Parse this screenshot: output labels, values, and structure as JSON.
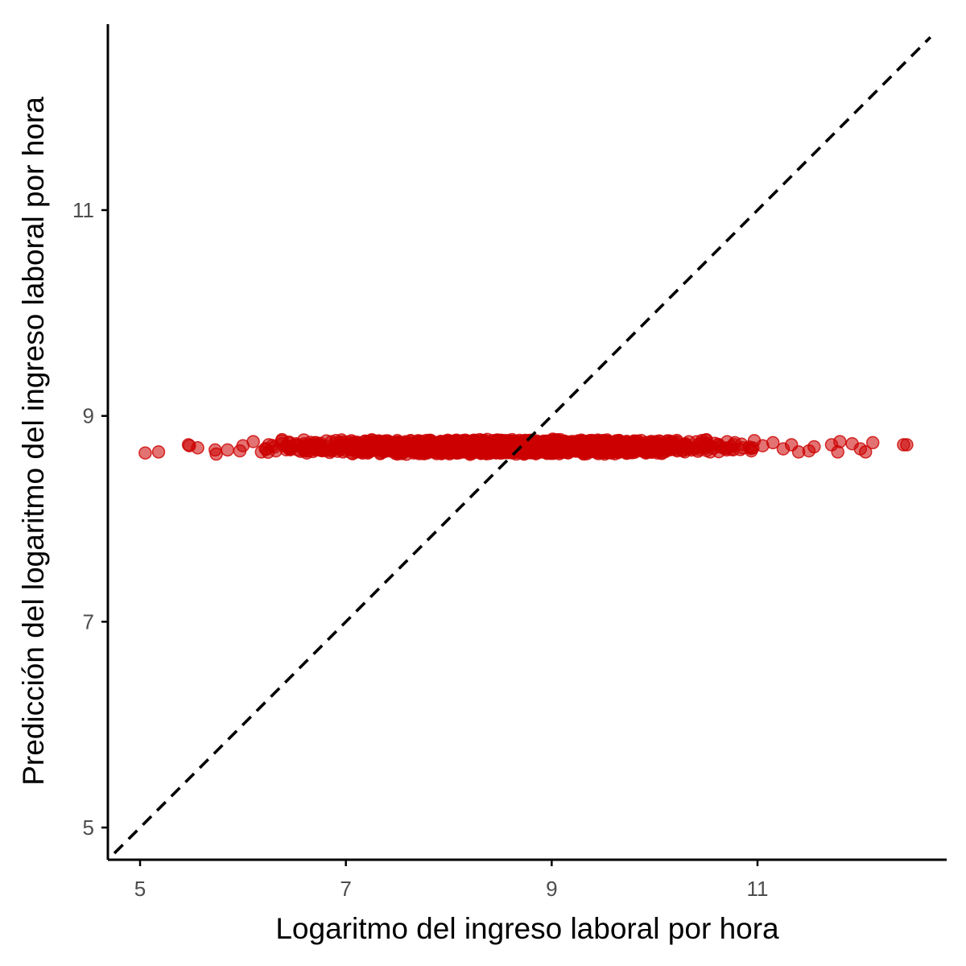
{
  "chart_data": {
    "type": "scatter",
    "title": "",
    "xlabel": "Logaritmo del ingreso laboral por hora",
    "ylabel": "Predicción del logaritmo del ingreso laboral por hora",
    "xlim": [
      4.7,
      12.7
    ],
    "ylim": [
      4.7,
      12.8
    ],
    "x_ticks": [
      5,
      7,
      9,
      11
    ],
    "y_ticks": [
      5,
      7,
      9,
      11
    ],
    "x_tick_labels": [
      "5",
      "7",
      "9",
      "11"
    ],
    "y_tick_labels": [
      "5",
      "7",
      "9",
      "11"
    ],
    "grid": false,
    "point_color": "#CC0000",
    "point_opacity": 0.55,
    "reference_line": {
      "type": "identity",
      "style": "dashed",
      "color": "#000000"
    },
    "series": [
      {
        "values": [
          {
            "x": 5.05,
            "y": 8.64
          },
          {
            "x": 5.18,
            "y": 8.65
          },
          {
            "x": 5.47,
            "y": 8.72
          },
          {
            "x": 5.48,
            "y": 8.71
          },
          {
            "x": 5.56,
            "y": 8.69
          },
          {
            "x": 5.73,
            "y": 8.67
          },
          {
            "x": 5.74,
            "y": 8.63
          },
          {
            "x": 5.85,
            "y": 8.67
          },
          {
            "x": 5.97,
            "y": 8.66
          },
          {
            "x": 6.0,
            "y": 8.71
          },
          {
            "x": 6.1,
            "y": 8.75
          },
          {
            "x": 6.18,
            "y": 8.65
          },
          {
            "x": 6.25,
            "y": 8.72
          },
          {
            "x": 6.32,
            "y": 8.66
          },
          {
            "x": 6.38,
            "y": 8.77
          },
          {
            "x": 6.45,
            "y": 8.68
          },
          {
            "x": 6.55,
            "y": 8.71
          },
          {
            "x": 6.62,
            "y": 8.64
          },
          {
            "x": 6.7,
            "y": 8.74
          },
          {
            "x": 6.78,
            "y": 8.69
          },
          {
            "x": 6.86,
            "y": 8.66
          },
          {
            "x": 6.94,
            "y": 8.73
          },
          {
            "x": 7.02,
            "y": 8.7
          },
          {
            "x": 7.1,
            "y": 8.65
          },
          {
            "x": 7.18,
            "y": 8.75
          },
          {
            "x": 7.26,
            "y": 8.68
          },
          {
            "x": 7.34,
            "y": 8.72
          },
          {
            "x": 7.42,
            "y": 8.66
          },
          {
            "x": 7.5,
            "y": 8.76
          },
          {
            "x": 7.58,
            "y": 8.69
          },
          {
            "x": 7.66,
            "y": 8.64
          },
          {
            "x": 7.74,
            "y": 8.73
          },
          {
            "x": 7.82,
            "y": 8.7
          },
          {
            "x": 7.9,
            "y": 8.66
          },
          {
            "x": 7.98,
            "y": 8.75
          },
          {
            "x": 8.06,
            "y": 8.68
          },
          {
            "x": 8.14,
            "y": 8.72
          },
          {
            "x": 8.22,
            "y": 8.65
          },
          {
            "x": 8.3,
            "y": 8.77
          },
          {
            "x": 8.38,
            "y": 8.7
          },
          {
            "x": 8.46,
            "y": 8.64
          },
          {
            "x": 8.54,
            "y": 8.74
          },
          {
            "x": 8.62,
            "y": 8.69
          },
          {
            "x": 8.7,
            "y": 8.66
          },
          {
            "x": 8.78,
            "y": 8.76
          },
          {
            "x": 8.86,
            "y": 8.68
          },
          {
            "x": 8.94,
            "y": 8.72
          },
          {
            "x": 9.02,
            "y": 8.65
          },
          {
            "x": 9.1,
            "y": 8.75
          },
          {
            "x": 9.18,
            "y": 8.7
          },
          {
            "x": 9.26,
            "y": 8.66
          },
          {
            "x": 9.34,
            "y": 8.73
          },
          {
            "x": 9.42,
            "y": 8.68
          },
          {
            "x": 9.5,
            "y": 8.76
          },
          {
            "x": 9.58,
            "y": 8.64
          },
          {
            "x": 9.66,
            "y": 8.71
          },
          {
            "x": 9.74,
            "y": 8.67
          },
          {
            "x": 9.82,
            "y": 8.74
          },
          {
            "x": 9.9,
            "y": 8.69
          },
          {
            "x": 9.98,
            "y": 8.65
          },
          {
            "x": 10.06,
            "y": 8.75
          },
          {
            "x": 10.14,
            "y": 8.7
          },
          {
            "x": 10.22,
            "y": 8.66
          },
          {
            "x": 10.3,
            "y": 8.73
          },
          {
            "x": 10.38,
            "y": 8.68
          },
          {
            "x": 10.46,
            "y": 8.76
          },
          {
            "x": 10.54,
            "y": 8.65
          },
          {
            "x": 10.62,
            "y": 8.72
          },
          {
            "x": 10.7,
            "y": 8.67
          },
          {
            "x": 10.78,
            "y": 8.74
          },
          {
            "x": 10.86,
            "y": 8.69
          },
          {
            "x": 10.94,
            "y": 8.66
          },
          {
            "x": 11.05,
            "y": 8.71
          },
          {
            "x": 11.15,
            "y": 8.74
          },
          {
            "x": 11.25,
            "y": 8.68
          },
          {
            "x": 11.33,
            "y": 8.72
          },
          {
            "x": 11.4,
            "y": 8.65
          },
          {
            "x": 11.5,
            "y": 8.66
          },
          {
            "x": 11.55,
            "y": 8.7
          },
          {
            "x": 11.72,
            "y": 8.72
          },
          {
            "x": 11.78,
            "y": 8.65
          },
          {
            "x": 11.8,
            "y": 8.75
          },
          {
            "x": 11.92,
            "y": 8.73
          },
          {
            "x": 12.0,
            "y": 8.68
          },
          {
            "x": 12.05,
            "y": 8.65
          },
          {
            "x": 12.12,
            "y": 8.74
          },
          {
            "x": 12.42,
            "y": 8.72
          },
          {
            "x": 12.45,
            "y": 8.72
          }
        ],
        "dense_band": {
          "x_range": [
            6.2,
            11.0
          ],
          "y_range": [
            8.6,
            8.8
          ],
          "approx_points": 2000
        }
      }
    ]
  }
}
